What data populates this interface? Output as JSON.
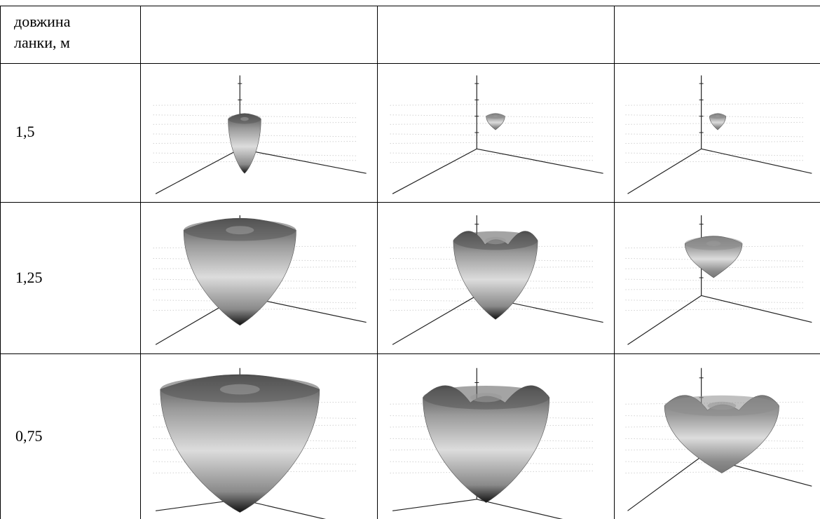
{
  "table": {
    "header": {
      "first_col_line1": "довжина",
      "first_col_line2": "ланки, м",
      "other_cols": [
        "",
        "",
        ""
      ]
    },
    "rows": [
      {
        "label": "1,5",
        "plots": [
          {
            "shape": "small-cone"
          },
          {
            "shape": "tiny-cone"
          },
          {
            "shape": "tiny-cone"
          }
        ]
      },
      {
        "label": "1,25",
        "plots": [
          {
            "shape": "bowl-flat"
          },
          {
            "shape": "bowl-wavy"
          },
          {
            "shape": "small-bowl"
          }
        ]
      },
      {
        "label": "0,75",
        "plots": [
          {
            "shape": "large-bowl-flat"
          },
          {
            "shape": "large-bowl-wavy"
          },
          {
            "shape": "bowl-curved"
          }
        ]
      }
    ]
  }
}
